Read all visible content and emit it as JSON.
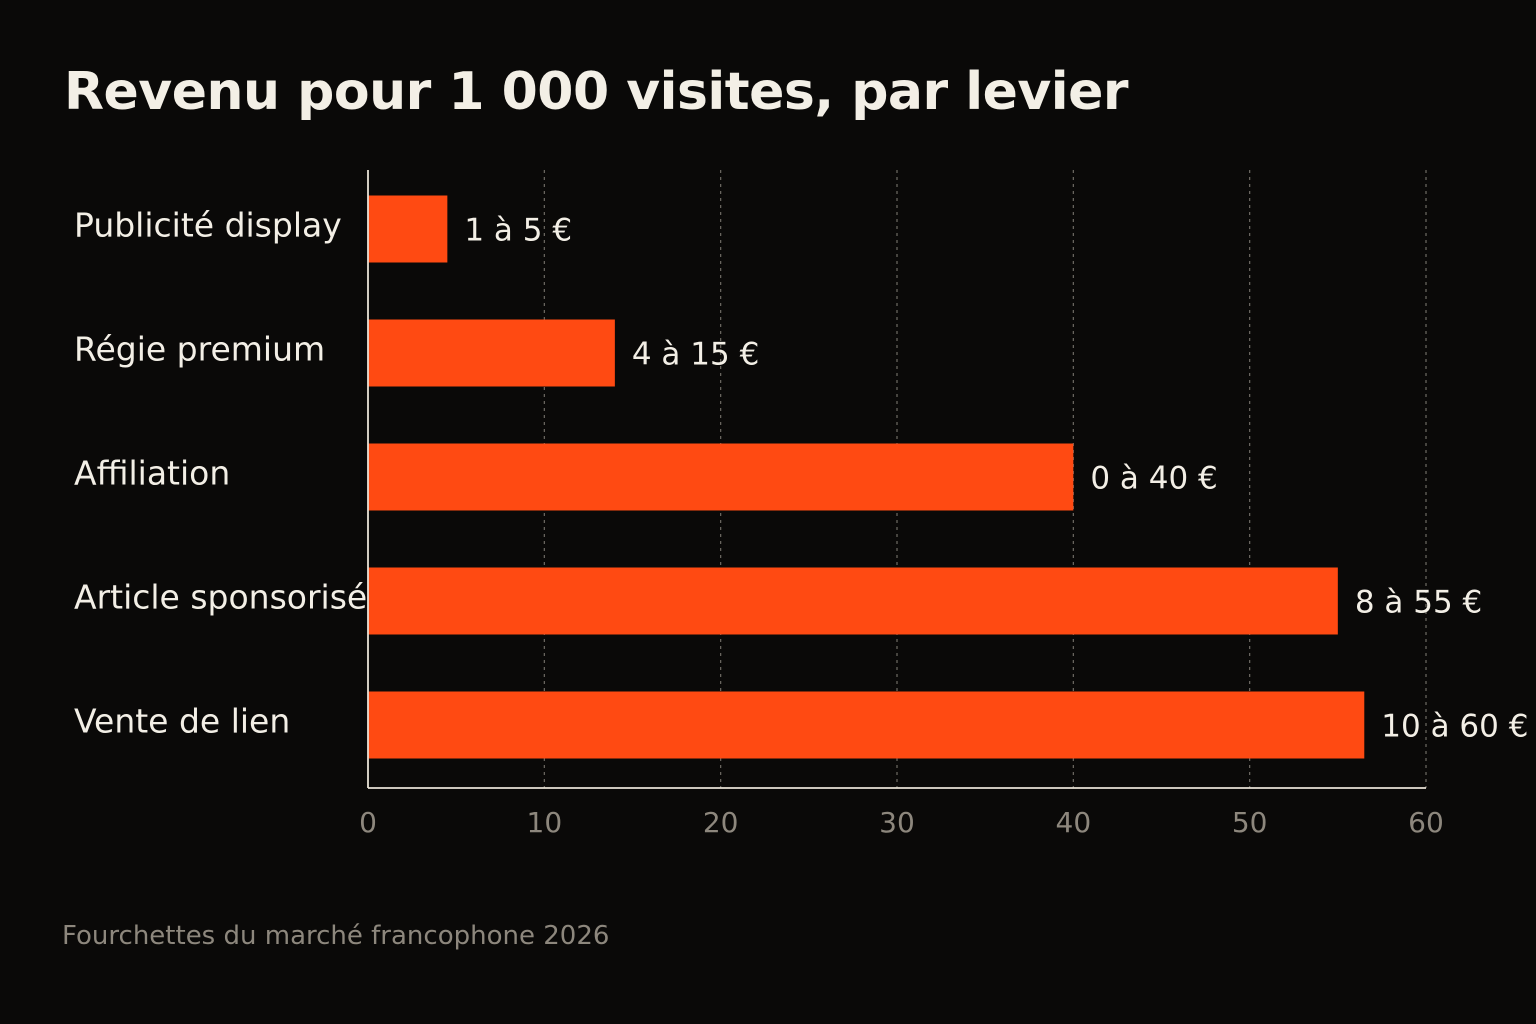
{
  "chart_data": {
    "type": "bar",
    "orientation": "horizontal",
    "title": "Revenu pour 1 000 visites, par levier",
    "xlabel": "",
    "ylabel": "",
    "xlim": [
      0,
      60
    ],
    "x_ticks": [
      0,
      10,
      20,
      30,
      40,
      50,
      60
    ],
    "grid": "vertical dashed",
    "categories": [
      "Publicité display",
      "Régie premium",
      "Affiliation",
      "Article sponsorisé",
      "Vente de lien"
    ],
    "values": [
      4.5,
      14,
      40,
      55,
      56.5
    ],
    "data_labels": [
      "1 à 5 €",
      "4 à 15 €",
      "0 à 40 €",
      "8 à 55 €",
      "10 à 60 €"
    ],
    "bar_color": "#ff4a12",
    "footnote": "Fourchettes du marché francophone 2026"
  },
  "colors": {
    "background": "#0a0908",
    "bar": "#ff4a12",
    "text": "#f3efe6",
    "axis": "#e8e2d6",
    "tick_text": "#8d877d",
    "grid": "#6f6b64"
  }
}
